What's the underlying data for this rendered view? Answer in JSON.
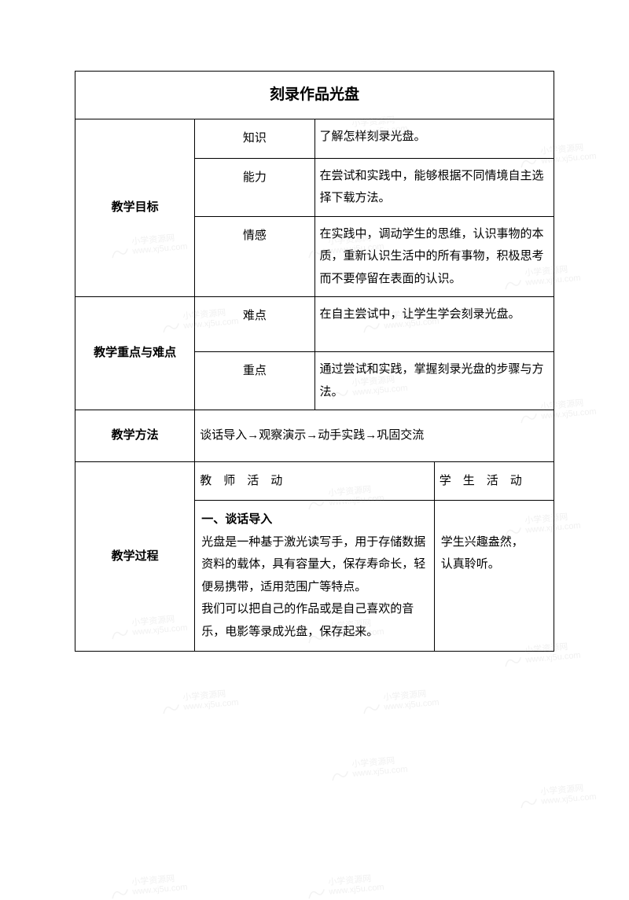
{
  "title": "刻录作品光盘",
  "objectives": {
    "label": "教学目标",
    "knowledge": {
      "label": "知识",
      "text": "了解怎样刻录光盘。"
    },
    "ability": {
      "label": "能力",
      "text": "在尝试和实践中，能够根据不同情境自主选择下载方法。"
    },
    "emotion": {
      "label": "情感",
      "text": "在实践中，调动学生的思维，认识事物的本质，重新认识生活中的所有事物，积极思考而不要停留在表面的认识。"
    }
  },
  "keypoints": {
    "label": "教学重点与难点",
    "difficulty": {
      "label": "难点",
      "text": "在自主尝试中，让学生学会刻录光盘。"
    },
    "key": {
      "label": "重点",
      "text": "通过尝试和实践，掌握刻录光盘的步骤与方法。"
    }
  },
  "method": {
    "label": "教学方法",
    "text": "谈话导入→观察演示→动手实践→巩固交流"
  },
  "process": {
    "label": "教学过程",
    "teacher_header": "教　师　活　动",
    "student_header": "学　生　活　动",
    "section1_title": "一、谈话导入",
    "teacher_content": "光盘是一种基于激光读写手，用于存储数据资料的载体，具有容量大，保存寿命长，轻便易携带，适用范围广等特点。\n我们可以把自己的作品或是自己喜欢的音乐，电影等录成光盘，保存起来。",
    "student_content": "学生兴趣盎然，认真聆听。"
  },
  "watermark_text1": "小学资源网",
  "watermark_text2": "www.xj5u.com"
}
